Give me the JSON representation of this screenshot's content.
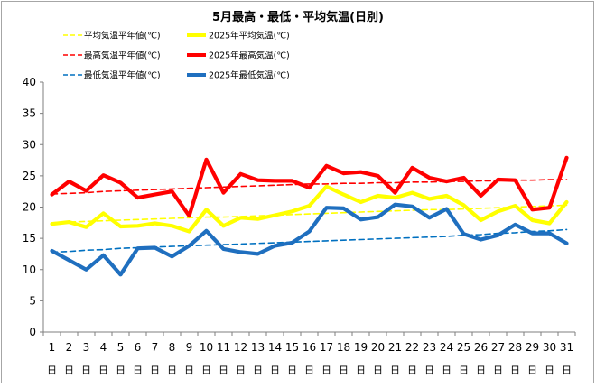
{
  "chart_data": {
    "type": "line",
    "title": "5月最高・最低・平均気温(日別)",
    "xlabel": "",
    "ylabel": "",
    "ylim": [
      0,
      40
    ],
    "yticks": [
      0,
      5,
      10,
      15,
      20,
      25,
      30,
      35,
      40
    ],
    "grid": false,
    "legend_position": "top-left",
    "x": [
      1,
      2,
      3,
      4,
      5,
      6,
      7,
      8,
      9,
      10,
      11,
      12,
      13,
      14,
      15,
      16,
      17,
      18,
      19,
      20,
      21,
      22,
      23,
      24,
      25,
      26,
      27,
      28,
      29,
      30,
      31
    ],
    "x_labels": [
      "1日",
      "2日",
      "3日",
      "4日",
      "5日",
      "6日",
      "7日",
      "8日",
      "9日",
      "10日",
      "11日",
      "12日",
      "13日",
      "14日",
      "15日",
      "16日",
      "17日",
      "18日",
      "19日",
      "20日",
      "21日",
      "22日",
      "23日",
      "24日",
      "25日",
      "26日",
      "27日",
      "28日",
      "29日",
      "30日",
      "31日"
    ],
    "series": [
      {
        "name": "平均気温平年値(℃)",
        "style": "dashed",
        "color": "#ffff00",
        "values": [
          17.5,
          17.6,
          17.7,
          17.8,
          17.9,
          18.0,
          18.1,
          18.2,
          18.3,
          18.4,
          18.4,
          18.5,
          18.6,
          18.7,
          18.8,
          18.9,
          19.0,
          19.1,
          19.2,
          19.3,
          19.4,
          19.5,
          19.6,
          19.6,
          19.7,
          19.8,
          19.9,
          20.0,
          20.1,
          20.2,
          20.3
        ]
      },
      {
        "name": "2025年平均気温(℃)",
        "style": "solid",
        "color": "#ffff00",
        "values": [
          17.3,
          17.6,
          16.8,
          19.0,
          16.9,
          17.0,
          17.4,
          17.0,
          16.1,
          19.6,
          17.0,
          18.3,
          18.1,
          18.7,
          19.3,
          20.2,
          23.3,
          22.0,
          20.8,
          21.8,
          21.5,
          22.3,
          21.3,
          21.8,
          20.3,
          17.9,
          19.3,
          20.2,
          17.9,
          17.4,
          20.8
        ]
      },
      {
        "name": "最高気温平年値(℃)",
        "style": "dashed",
        "color": "#ff0000",
        "values": [
          22.1,
          22.2,
          22.3,
          22.5,
          22.6,
          22.7,
          22.8,
          22.9,
          23.0,
          23.1,
          23.2,
          23.3,
          23.4,
          23.5,
          23.6,
          23.7,
          23.7,
          23.8,
          23.8,
          23.9,
          23.9,
          24.0,
          24.0,
          24.1,
          24.1,
          24.2,
          24.2,
          24.3,
          24.3,
          24.4,
          24.4
        ]
      },
      {
        "name": "2025年最高気温(℃)",
        "style": "solid",
        "color": "#ff0000",
        "values": [
          22.0,
          24.1,
          22.6,
          25.1,
          23.9,
          21.5,
          22.0,
          22.5,
          18.6,
          27.6,
          22.3,
          25.3,
          24.3,
          24.2,
          24.2,
          23.1,
          26.6,
          25.4,
          25.6,
          25.0,
          22.3,
          26.3,
          24.7,
          24.1,
          24.7,
          21.8,
          24.4,
          24.3,
          19.6,
          19.9,
          27.9
        ]
      },
      {
        "name": "最低気温平年値(℃)",
        "style": "dashed",
        "color": "#0070c0",
        "values": [
          12.8,
          12.9,
          13.1,
          13.2,
          13.4,
          13.5,
          13.6,
          13.7,
          13.8,
          13.9,
          14.0,
          14.1,
          14.2,
          14.3,
          14.4,
          14.5,
          14.6,
          14.7,
          14.8,
          14.9,
          15.0,
          15.1,
          15.2,
          15.3,
          15.5,
          15.6,
          15.8,
          15.9,
          16.1,
          16.2,
          16.4
        ]
      },
      {
        "name": "2025年最低気温(℃)",
        "style": "solid",
        "color": "#1f6fbf",
        "values": [
          13.0,
          11.5,
          10.0,
          12.3,
          9.2,
          13.4,
          13.5,
          12.1,
          13.8,
          16.2,
          13.3,
          12.8,
          12.5,
          13.8,
          14.3,
          16.1,
          19.9,
          19.8,
          18.0,
          18.4,
          20.4,
          20.1,
          18.3,
          19.7,
          15.7,
          14.8,
          15.5,
          17.2,
          15.8,
          15.8,
          14.2
        ]
      }
    ]
  }
}
